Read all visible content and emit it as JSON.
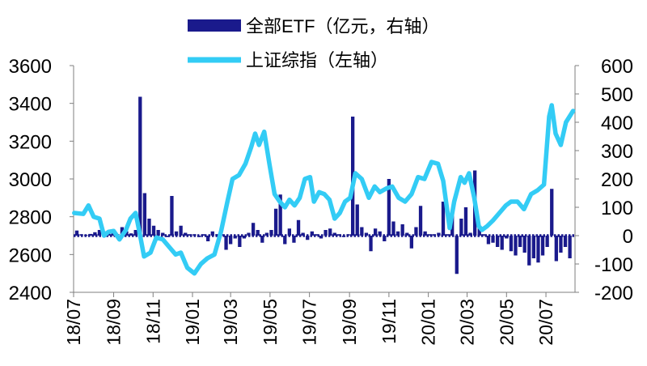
{
  "chart_data": {
    "type": "bar+line",
    "title": "",
    "legend": [
      {
        "name": "全部ETF（亿元，右轴）",
        "kind": "bar",
        "axis": "right"
      },
      {
        "name": "上证综指（左轴）",
        "kind": "line",
        "axis": "left"
      }
    ],
    "legend_position": "top",
    "grid": false,
    "y_left": {
      "min": 2400,
      "max": 3600,
      "ticks": [
        2400,
        2600,
        2800,
        3000,
        3200,
        3400,
        3600
      ]
    },
    "y_right": {
      "min": -200,
      "max": 600,
      "ticks": [
        -200,
        -100,
        0,
        100,
        200,
        300,
        400,
        500,
        600
      ]
    },
    "x_range": [
      "2018-07-01",
      "2020-08-15"
    ],
    "x_ticks": [
      "18/07",
      "18/09",
      "18/11",
      "19/01",
      "19/03",
      "19/05",
      "19/07",
      "19/09",
      "19/11",
      "20/01",
      "20/03",
      "20/05",
      "20/07"
    ],
    "colors": {
      "bar": "#1a1a8c",
      "line": "#33ccf5"
    },
    "series": [
      {
        "name": "全部ETF（亿元，右轴）",
        "axis": "right",
        "type": "bar",
        "points": [
          [
            "2018-07-06",
            18
          ],
          [
            "2018-07-13",
            5
          ],
          [
            "2018-07-20",
            3
          ],
          [
            "2018-07-27",
            6
          ],
          [
            "2018-08-03",
            12
          ],
          [
            "2018-08-10",
            20
          ],
          [
            "2018-08-17",
            15
          ],
          [
            "2018-08-24",
            8
          ],
          [
            "2018-08-31",
            10
          ],
          [
            "2018-09-07",
            5
          ],
          [
            "2018-09-14",
            30
          ],
          [
            "2018-09-21",
            15
          ],
          [
            "2018-09-28",
            8
          ],
          [
            "2018-10-05",
            20
          ],
          [
            "2018-10-12",
            490
          ],
          [
            "2018-10-19",
            150
          ],
          [
            "2018-10-26",
            60
          ],
          [
            "2018-11-02",
            35
          ],
          [
            "2018-11-09",
            20
          ],
          [
            "2018-11-16",
            10
          ],
          [
            "2018-11-23",
            -5
          ],
          [
            "2018-11-30",
            140
          ],
          [
            "2018-12-07",
            15
          ],
          [
            "2018-12-14",
            35
          ],
          [
            "2018-12-21",
            10
          ],
          [
            "2018-12-28",
            5
          ],
          [
            "2019-01-04",
            5
          ],
          [
            "2019-01-11",
            -5
          ],
          [
            "2019-01-18",
            5
          ],
          [
            "2019-01-25",
            -20
          ],
          [
            "2019-02-01",
            15
          ],
          [
            "2019-02-08",
            5
          ],
          [
            "2019-02-15",
            5
          ],
          [
            "2019-02-22",
            -50
          ],
          [
            "2019-03-01",
            -30
          ],
          [
            "2019-03-08",
            -10
          ],
          [
            "2019-03-15",
            -40
          ],
          [
            "2019-03-22",
            -10
          ],
          [
            "2019-03-29",
            10
          ],
          [
            "2019-04-05",
            45
          ],
          [
            "2019-04-12",
            20
          ],
          [
            "2019-04-19",
            -25
          ],
          [
            "2019-04-26",
            10
          ],
          [
            "2019-05-03",
            20
          ],
          [
            "2019-05-10",
            95
          ],
          [
            "2019-05-17",
            145
          ],
          [
            "2019-05-24",
            -30
          ],
          [
            "2019-05-31",
            25
          ],
          [
            "2019-06-07",
            -25
          ],
          [
            "2019-06-14",
            55
          ],
          [
            "2019-06-21",
            10
          ],
          [
            "2019-06-28",
            -15
          ],
          [
            "2019-07-05",
            15
          ],
          [
            "2019-07-12",
            5
          ],
          [
            "2019-07-19",
            -10
          ],
          [
            "2019-07-26",
            20
          ],
          [
            "2019-08-02",
            25
          ],
          [
            "2019-08-09",
            10
          ],
          [
            "2019-08-16",
            5
          ],
          [
            "2019-08-23",
            -5
          ],
          [
            "2019-08-30",
            5
          ],
          [
            "2019-09-06",
            420
          ],
          [
            "2019-09-13",
            110
          ],
          [
            "2019-09-20",
            30
          ],
          [
            "2019-09-27",
            10
          ],
          [
            "2019-10-04",
            -55
          ],
          [
            "2019-10-11",
            25
          ],
          [
            "2019-10-18",
            15
          ],
          [
            "2019-10-25",
            -20
          ],
          [
            "2019-11-01",
            200
          ],
          [
            "2019-11-08",
            50
          ],
          [
            "2019-11-15",
            15
          ],
          [
            "2019-11-22",
            40
          ],
          [
            "2019-11-29",
            10
          ],
          [
            "2019-12-06",
            -45
          ],
          [
            "2019-12-13",
            30
          ],
          [
            "2019-12-20",
            105
          ],
          [
            "2019-12-27",
            15
          ],
          [
            "2020-01-03",
            5
          ],
          [
            "2020-01-10",
            5
          ],
          [
            "2020-01-17",
            10
          ],
          [
            "2020-01-24",
            120
          ],
          [
            "2020-01-31",
            5
          ],
          [
            "2020-02-07",
            80
          ],
          [
            "2020-02-14",
            -135
          ],
          [
            "2020-02-21",
            60
          ],
          [
            "2020-02-28",
            100
          ],
          [
            "2020-03-06",
            10
          ],
          [
            "2020-03-13",
            230
          ],
          [
            "2020-03-20",
            30
          ],
          [
            "2020-03-27",
            5
          ],
          [
            "2020-04-03",
            -30
          ],
          [
            "2020-04-10",
            -25
          ],
          [
            "2020-04-17",
            -40
          ],
          [
            "2020-04-24",
            -50
          ],
          [
            "2020-05-01",
            -10
          ],
          [
            "2020-05-08",
            -55
          ],
          [
            "2020-05-15",
            -70
          ],
          [
            "2020-05-22",
            -40
          ],
          [
            "2020-05-29",
            -60
          ],
          [
            "2020-06-05",
            -105
          ],
          [
            "2020-06-12",
            -80
          ],
          [
            "2020-06-19",
            -95
          ],
          [
            "2020-06-26",
            -70
          ],
          [
            "2020-07-03",
            -40
          ],
          [
            "2020-07-10",
            165
          ],
          [
            "2020-07-17",
            -90
          ],
          [
            "2020-07-24",
            -60
          ],
          [
            "2020-07-31",
            -40
          ],
          [
            "2020-08-07",
            -80
          ]
        ]
      },
      {
        "name": "上证综指（左轴）",
        "axis": "left",
        "type": "line",
        "points": [
          [
            "2018-07-02",
            2820
          ],
          [
            "2018-07-16",
            2815
          ],
          [
            "2018-07-24",
            2860
          ],
          [
            "2018-08-01",
            2800
          ],
          [
            "2018-08-10",
            2790
          ],
          [
            "2018-08-17",
            2700
          ],
          [
            "2018-08-24",
            2720
          ],
          [
            "2018-09-01",
            2725
          ],
          [
            "2018-09-10",
            2680
          ],
          [
            "2018-09-20",
            2730
          ],
          [
            "2018-09-27",
            2790
          ],
          [
            "2018-10-05",
            2820
          ],
          [
            "2018-10-12",
            2700
          ],
          [
            "2018-10-18",
            2590
          ],
          [
            "2018-10-28",
            2610
          ],
          [
            "2018-11-06",
            2690
          ],
          [
            "2018-11-16",
            2680
          ],
          [
            "2018-11-26",
            2640
          ],
          [
            "2018-12-06",
            2600
          ],
          [
            "2018-12-14",
            2610
          ],
          [
            "2018-12-24",
            2530
          ],
          [
            "2019-01-04",
            2500
          ],
          [
            "2019-01-14",
            2550
          ],
          [
            "2019-01-24",
            2580
          ],
          [
            "2019-02-04",
            2600
          ],
          [
            "2019-02-14",
            2720
          ],
          [
            "2019-02-24",
            2880
          ],
          [
            "2019-03-04",
            3000
          ],
          [
            "2019-03-14",
            3020
          ],
          [
            "2019-03-24",
            3080
          ],
          [
            "2019-04-02",
            3170
          ],
          [
            "2019-04-08",
            3240
          ],
          [
            "2019-04-14",
            3180
          ],
          [
            "2019-04-22",
            3250
          ],
          [
            "2019-04-30",
            3080
          ],
          [
            "2019-05-08",
            2920
          ],
          [
            "2019-05-16",
            2880
          ],
          [
            "2019-05-24",
            2850
          ],
          [
            "2019-05-31",
            2890
          ],
          [
            "2019-06-08",
            2860
          ],
          [
            "2019-06-16",
            2900
          ],
          [
            "2019-06-24",
            3000
          ],
          [
            "2019-07-02",
            3010
          ],
          [
            "2019-07-08",
            2880
          ],
          [
            "2019-07-16",
            2930
          ],
          [
            "2019-07-24",
            2920
          ],
          [
            "2019-08-01",
            2890
          ],
          [
            "2019-08-09",
            2790
          ],
          [
            "2019-08-17",
            2820
          ],
          [
            "2019-08-25",
            2880
          ],
          [
            "2019-09-02",
            2900
          ],
          [
            "2019-09-10",
            3030
          ],
          [
            "2019-09-20",
            3000
          ],
          [
            "2019-10-01",
            2900
          ],
          [
            "2019-10-10",
            2960
          ],
          [
            "2019-10-18",
            2930
          ],
          [
            "2019-10-28",
            2950
          ],
          [
            "2019-11-06",
            2960
          ],
          [
            "2019-11-16",
            2900
          ],
          [
            "2019-11-26",
            2880
          ],
          [
            "2019-12-06",
            2920
          ],
          [
            "2019-12-16",
            3010
          ],
          [
            "2019-12-26",
            3000
          ],
          [
            "2020-01-06",
            3090
          ],
          [
            "2020-01-16",
            3080
          ],
          [
            "2020-01-24",
            2990
          ],
          [
            "2020-02-03",
            2740
          ],
          [
            "2020-02-10",
            2880
          ],
          [
            "2020-02-20",
            3010
          ],
          [
            "2020-02-26",
            2980
          ],
          [
            "2020-03-04",
            3030
          ],
          [
            "2020-03-12",
            2900
          ],
          [
            "2020-03-19",
            2750
          ],
          [
            "2020-03-24",
            2730
          ],
          [
            "2020-04-01",
            2750
          ],
          [
            "2020-04-10",
            2780
          ],
          [
            "2020-04-20",
            2820
          ],
          [
            "2020-04-30",
            2860
          ],
          [
            "2020-05-08",
            2880
          ],
          [
            "2020-05-18",
            2880
          ],
          [
            "2020-05-28",
            2840
          ],
          [
            "2020-06-08",
            2920
          ],
          [
            "2020-06-18",
            2940
          ],
          [
            "2020-06-28",
            2970
          ],
          [
            "2020-07-06",
            3330
          ],
          [
            "2020-07-10",
            3390
          ],
          [
            "2020-07-16",
            3240
          ],
          [
            "2020-07-24",
            3180
          ],
          [
            "2020-08-01",
            3300
          ],
          [
            "2020-08-12",
            3360
          ]
        ]
      }
    ]
  }
}
